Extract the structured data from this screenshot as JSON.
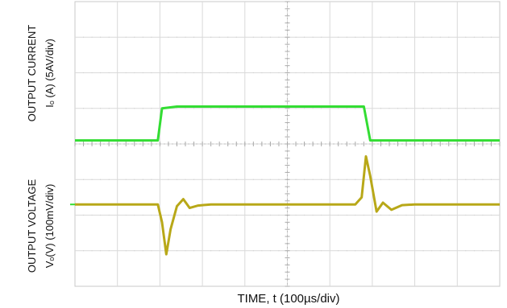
{
  "chart_data": {
    "type": "line",
    "xlabel": "TIME, t (100µs/div)",
    "ylabels": {
      "current": {
        "title": "OUTPUT CURRENT",
        "units": "Iₒ (A) (5AV/div)"
      },
      "voltage": {
        "title": "OUTPUT VOLTAGE",
        "units": "Vₒ(V) (100mV/div)"
      }
    },
    "grid": true,
    "divisions": {
      "x": 10,
      "y": 8
    },
    "x_range_div": [
      0,
      10
    ],
    "series": [
      {
        "key": "current",
        "color": "#33dd33",
        "points": [
          [
            0,
            4.1
          ],
          [
            1.95,
            4.1
          ],
          [
            2.05,
            5.0
          ],
          [
            2.4,
            5.05
          ],
          [
            6.8,
            5.05
          ],
          [
            6.95,
            4.1
          ],
          [
            10,
            4.1
          ]
        ]
      },
      {
        "key": "voltage",
        "color": "#b8a818",
        "points": [
          [
            0,
            2.3
          ],
          [
            1.95,
            2.3
          ],
          [
            2.05,
            1.8
          ],
          [
            2.15,
            0.9
          ],
          [
            2.25,
            1.6
          ],
          [
            2.4,
            2.25
          ],
          [
            2.55,
            2.45
          ],
          [
            2.7,
            2.2
          ],
          [
            2.9,
            2.27
          ],
          [
            3.2,
            2.3
          ],
          [
            6.6,
            2.3
          ],
          [
            6.75,
            2.5
          ],
          [
            6.85,
            3.65
          ],
          [
            6.95,
            3.1
          ],
          [
            7.1,
            2.1
          ],
          [
            7.25,
            2.35
          ],
          [
            7.45,
            2.15
          ],
          [
            7.7,
            2.28
          ],
          [
            8.0,
            2.3
          ],
          [
            10,
            2.3
          ]
        ]
      }
    ],
    "markers": [
      {
        "key": "voltage-ground",
        "y_div": 2.3,
        "color": "#33dd33"
      }
    ]
  }
}
